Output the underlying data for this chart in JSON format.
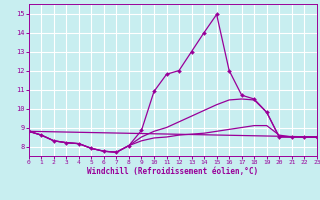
{
  "xlabel": "Windchill (Refroidissement éolien,°C)",
  "bg_color": "#c8eef0",
  "line_color": "#990099",
  "grid_color": "#b0d8dc",
  "xlim": [
    0,
    23
  ],
  "ylim": [
    7.5,
    15.5
  ],
  "yticks": [
    8,
    9,
    10,
    11,
    12,
    13,
    14,
    15
  ],
  "xticks": [
    0,
    1,
    2,
    3,
    4,
    5,
    6,
    7,
    8,
    9,
    10,
    11,
    12,
    13,
    14,
    15,
    16,
    17,
    18,
    19,
    20,
    21,
    22,
    23
  ],
  "curve1_x": [
    0,
    1,
    2,
    3,
    4,
    5,
    6,
    7,
    8,
    9,
    10,
    11,
    12,
    13,
    14,
    15,
    16,
    17,
    18,
    19,
    20,
    21,
    22,
    23
  ],
  "curve1_y": [
    8.8,
    8.6,
    8.3,
    8.2,
    8.15,
    7.9,
    7.75,
    7.7,
    8.05,
    8.85,
    10.9,
    11.8,
    12.0,
    13.0,
    14.0,
    14.95,
    12.0,
    10.7,
    10.5,
    9.8,
    8.5,
    8.5,
    8.5,
    8.5
  ],
  "curve2_x": [
    0,
    1,
    2,
    3,
    4,
    5,
    6,
    7,
    8,
    9,
    10,
    11,
    12,
    13,
    14,
    15,
    16,
    17,
    18,
    19,
    20,
    21,
    22,
    23
  ],
  "curve2_y": [
    8.8,
    8.6,
    8.3,
    8.2,
    8.15,
    7.9,
    7.75,
    7.7,
    8.05,
    8.5,
    8.8,
    9.0,
    9.3,
    9.6,
    9.9,
    10.2,
    10.45,
    10.5,
    10.45,
    9.8,
    8.5,
    8.5,
    8.5,
    8.5
  ],
  "curve3_x": [
    0,
    1,
    2,
    3,
    4,
    5,
    6,
    7,
    8,
    9,
    10,
    11,
    12,
    13,
    14,
    15,
    16,
    17,
    18,
    19,
    20,
    21,
    22,
    23
  ],
  "curve3_y": [
    8.8,
    8.6,
    8.3,
    8.2,
    8.15,
    7.9,
    7.75,
    7.7,
    8.05,
    8.3,
    8.45,
    8.5,
    8.6,
    8.65,
    8.7,
    8.8,
    8.9,
    9.0,
    9.1,
    9.1,
    8.6,
    8.5,
    8.5,
    8.5
  ],
  "curve4_x": [
    0,
    23
  ],
  "curve4_y": [
    8.8,
    8.5
  ],
  "lw": 0.9,
  "ms": 2.0
}
